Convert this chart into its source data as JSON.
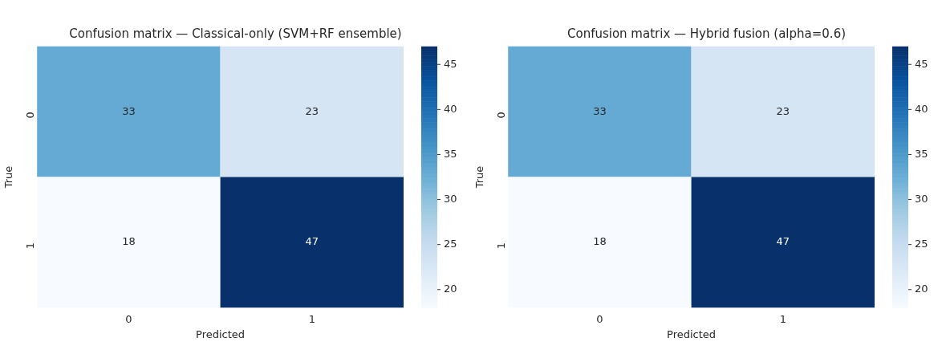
{
  "chart_data": [
    {
      "type": "heatmap",
      "title": "Confusion matrix — Classical-only (SVM+RF ensemble)",
      "xlabel": "Predicted",
      "ylabel": "True",
      "categories": [
        "0",
        "1"
      ],
      "y_categories": [
        "0",
        "1"
      ],
      "cells": [
        [
          33,
          23
        ],
        [
          18,
          47
        ]
      ],
      "data_labels": true,
      "clim": [
        18,
        47
      ],
      "cticks": [
        20,
        25,
        30,
        35,
        40,
        45
      ]
    },
    {
      "type": "heatmap",
      "title": "Confusion matrix — Hybrid fusion (alpha=0.6)",
      "xlabel": "Predicted",
      "ylabel": "True",
      "categories": [
        "0",
        "1"
      ],
      "y_categories": [
        "0",
        "1"
      ],
      "cells": [
        [
          33,
          23
        ],
        [
          18,
          47
        ]
      ],
      "data_labels": true,
      "clim": [
        18,
        47
      ],
      "cticks": [
        20,
        25,
        30,
        35,
        40,
        45
      ]
    }
  ]
}
